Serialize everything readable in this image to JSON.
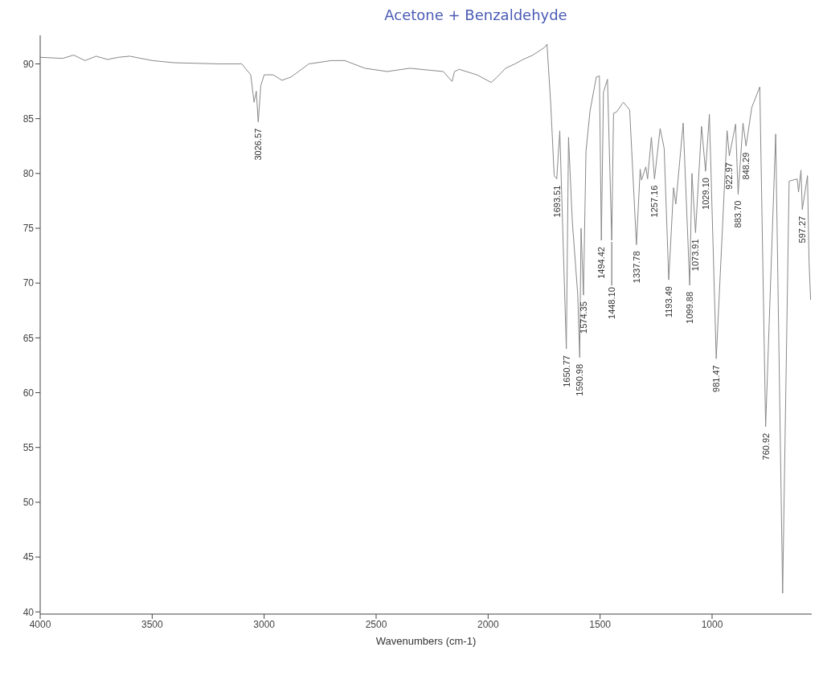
{
  "chart_data": {
    "type": "line",
    "title": "Acetone + Benzaldehyde",
    "xlabel": "Wavenumbers (cm-1)",
    "x": [
      4000,
      3900,
      3850,
      3800,
      3750,
      3700,
      3650,
      3600,
      3500,
      3400,
      3200,
      3100,
      3060,
      3045,
      3035,
      3026.57,
      3015,
      3000,
      2960,
      2920,
      2880,
      2800,
      2700,
      2640,
      2550,
      2450,
      2350,
      2250,
      2200,
      2161,
      2150,
      2129,
      2050,
      1986,
      1960,
      1922,
      1880,
      1844,
      1800,
      1748,
      1737,
      1720,
      1705,
      1693.51,
      1680,
      1650.77,
      1641,
      1624,
      1600,
      1590.98,
      1585,
      1574.35,
      1563,
      1545,
      1517,
      1503,
      1494.42,
      1485,
      1467,
      1448.1,
      1440,
      1427,
      1396,
      1368,
      1337.78,
      1321,
      1315,
      1296,
      1288,
      1271,
      1257.16,
      1232,
      1214,
      1193.49,
      1172,
      1162,
      1129,
      1099.88,
      1090,
      1073.91,
      1047,
      1029.1,
      1012,
      981.47,
      933,
      922.97,
      895,
      883.7,
      862,
      848.29,
      823,
      787,
      760.92,
      716,
      685,
      656,
      620,
      614,
      603,
      597.27,
      574,
      567,
      560
    ],
    "series": [
      {
        "color": "#888888",
        "values": [
          90.6,
          90.5,
          90.8,
          90.3,
          90.7,
          90.4,
          90.6,
          90.7,
          90.3,
          90.1,
          90.0,
          90.0,
          89.0,
          86.5,
          87.5,
          84.7,
          88.0,
          89.0,
          89.0,
          88.5,
          88.8,
          90.0,
          90.3,
          90.3,
          89.6,
          89.3,
          89.6,
          89.4,
          89.3,
          88.4,
          89.3,
          89.5,
          89.0,
          88.3,
          88.8,
          89.6,
          90.0,
          90.4,
          90.8,
          91.5,
          91.8,
          86.2,
          79.8,
          79.5,
          83.9,
          64.0,
          83.3,
          75.6,
          69.0,
          63.2,
          75.0,
          68.9,
          82.0,
          85.7,
          88.8,
          88.9,
          73.9,
          87.4,
          88.6,
          73.9,
          85.5,
          85.6,
          86.5,
          85.8,
          73.5,
          80.4,
          79.4,
          80.6,
          79.5,
          83.3,
          79.5,
          84.1,
          82.3,
          70.3,
          78.7,
          77.2,
          84.6,
          69.8,
          80.0,
          74.6,
          84.3,
          80.2,
          85.4,
          63.1,
          83.9,
          81.6,
          84.5,
          78.1,
          84.6,
          82.5,
          86.0,
          87.9,
          56.9,
          83.6,
          41.7,
          79.3,
          79.5,
          78.3,
          80.3,
          76.7,
          79.8,
          71.9,
          68.5
        ]
      }
    ],
    "xlim": [
      4000,
      555
    ],
    "xticks": [
      4000,
      3500,
      3000,
      2500,
      2000,
      1500,
      1000
    ],
    "ylim": [
      39.8,
      92.6
    ],
    "yticks": [
      40,
      45,
      50,
      55,
      60,
      65,
      70,
      75,
      80,
      85,
      90
    ],
    "grid": false,
    "legend": false,
    "marker": "none",
    "line_style": "solid",
    "annotations": [
      {
        "text": "3026.57",
        "x": 3026.57,
        "y": 84.7
      },
      {
        "text": "1693.51",
        "x": 1693.51,
        "y": 79.5
      },
      {
        "text": "1650.77",
        "x": 1650.77,
        "y": 64.0
      },
      {
        "text": "1590.98",
        "x": 1590.98,
        "y": 63.2
      },
      {
        "text": "1574.35",
        "x": 1574.35,
        "y": 68.9
      },
      {
        "text": "1494.42",
        "x": 1494.42,
        "y": 73.9
      },
      {
        "text": "1448.10",
        "x": 1448.1,
        "y": 73.9
      },
      {
        "text": "1337.78",
        "x": 1337.78,
        "y": 73.5
      },
      {
        "text": "1257.16",
        "x": 1257.16,
        "y": 79.5
      },
      {
        "text": "1193.49",
        "x": 1193.49,
        "y": 70.3
      },
      {
        "text": "1099.88",
        "x": 1099.88,
        "y": 69.8
      },
      {
        "text": "1073.91",
        "x": 1073.91,
        "y": 74.6
      },
      {
        "text": "1029.10",
        "x": 1029.1,
        "y": 80.2
      },
      {
        "text": "981.47",
        "x": 981.47,
        "y": 63.1
      },
      {
        "text": "922.97",
        "x": 922.97,
        "y": 81.6
      },
      {
        "text": "883.70",
        "x": 883.7,
        "y": 78.1
      },
      {
        "text": "848.29",
        "x": 848.29,
        "y": 82.5
      },
      {
        "text": "760.92",
        "x": 760.92,
        "y": 56.9
      },
      {
        "text": "597.27",
        "x": 597.27,
        "y": 76.7
      }
    ]
  }
}
